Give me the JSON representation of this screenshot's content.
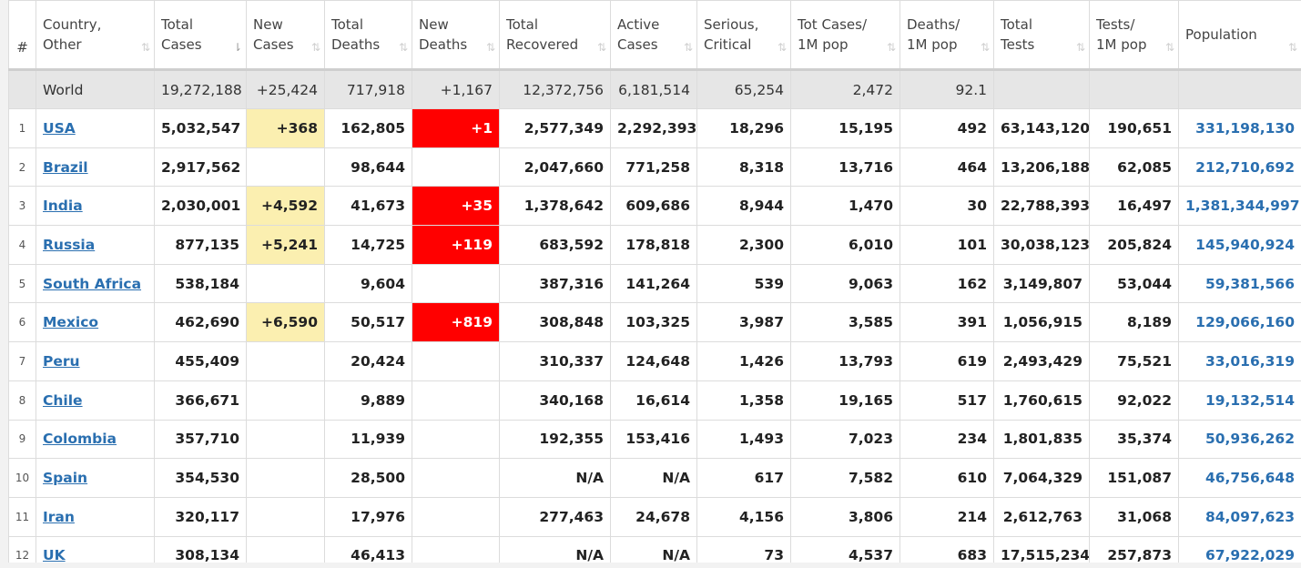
{
  "headers": [
    {
      "label_line1": "#",
      "label_line2": "",
      "sort": ""
    },
    {
      "label_line1": "Country,",
      "label_line2": "Other",
      "sort": "⇅"
    },
    {
      "label_line1": "Total",
      "label_line2": "Cases",
      "sort": "⇂"
    },
    {
      "label_line1": "New",
      "label_line2": "Cases",
      "sort": "⇅"
    },
    {
      "label_line1": "Total",
      "label_line2": "Deaths",
      "sort": "⇅"
    },
    {
      "label_line1": "New",
      "label_line2": "Deaths",
      "sort": "⇅"
    },
    {
      "label_line1": "Total",
      "label_line2": "Recovered",
      "sort": "⇅"
    },
    {
      "label_line1": "Active",
      "label_line2": "Cases",
      "sort": "⇅"
    },
    {
      "label_line1": "Serious,",
      "label_line2": "Critical",
      "sort": "⇅"
    },
    {
      "label_line1": "Tot Cases/",
      "label_line2": "1M pop",
      "sort": "⇅"
    },
    {
      "label_line1": "Deaths/",
      "label_line2": "1M pop",
      "sort": "⇅"
    },
    {
      "label_line1": "Total",
      "label_line2": "Tests",
      "sort": "⇅"
    },
    {
      "label_line1": "Tests/",
      "label_line2": "1M pop",
      "sort": "⇅"
    },
    {
      "label_line1": "Population",
      "label_line2": "",
      "sort": "⇅"
    }
  ],
  "world": {
    "rank": "",
    "country": "World",
    "total_cases": "19,272,188",
    "new_cases": "+25,424",
    "total_deaths": "717,918",
    "new_deaths": "+1,167",
    "total_recovered": "12,372,756",
    "active_cases": "6,181,514",
    "serious_critical": "65,254",
    "cases_per_1m": "2,472",
    "deaths_per_1m": "92.1",
    "total_tests": "",
    "tests_per_1m": "",
    "population": ""
  },
  "rows": [
    {
      "rank": "1",
      "country": "USA",
      "total_cases": "5,032,547",
      "new_cases": "+368",
      "total_deaths": "162,805",
      "new_deaths": "+1",
      "total_recovered": "2,577,349",
      "active_cases": "2,292,393",
      "serious_critical": "18,296",
      "cases_per_1m": "15,195",
      "deaths_per_1m": "492",
      "total_tests": "63,143,120",
      "tests_per_1m": "190,651",
      "population": "331,198,130"
    },
    {
      "rank": "2",
      "country": "Brazil",
      "total_cases": "2,917,562",
      "new_cases": "",
      "total_deaths": "98,644",
      "new_deaths": "",
      "total_recovered": "2,047,660",
      "active_cases": "771,258",
      "serious_critical": "8,318",
      "cases_per_1m": "13,716",
      "deaths_per_1m": "464",
      "total_tests": "13,206,188",
      "tests_per_1m": "62,085",
      "population": "212,710,692"
    },
    {
      "rank": "3",
      "country": "India",
      "total_cases": "2,030,001",
      "new_cases": "+4,592",
      "total_deaths": "41,673",
      "new_deaths": "+35",
      "total_recovered": "1,378,642",
      "active_cases": "609,686",
      "serious_critical": "8,944",
      "cases_per_1m": "1,470",
      "deaths_per_1m": "30",
      "total_tests": "22,788,393",
      "tests_per_1m": "16,497",
      "population": "1,381,344,997"
    },
    {
      "rank": "4",
      "country": "Russia",
      "total_cases": "877,135",
      "new_cases": "+5,241",
      "total_deaths": "14,725",
      "new_deaths": "+119",
      "total_recovered": "683,592",
      "active_cases": "178,818",
      "serious_critical": "2,300",
      "cases_per_1m": "6,010",
      "deaths_per_1m": "101",
      "total_tests": "30,038,123",
      "tests_per_1m": "205,824",
      "population": "145,940,924"
    },
    {
      "rank": "5",
      "country": "South Africa",
      "total_cases": "538,184",
      "new_cases": "",
      "total_deaths": "9,604",
      "new_deaths": "",
      "total_recovered": "387,316",
      "active_cases": "141,264",
      "serious_critical": "539",
      "cases_per_1m": "9,063",
      "deaths_per_1m": "162",
      "total_tests": "3,149,807",
      "tests_per_1m": "53,044",
      "population": "59,381,566"
    },
    {
      "rank": "6",
      "country": "Mexico",
      "total_cases": "462,690",
      "new_cases": "+6,590",
      "total_deaths": "50,517",
      "new_deaths": "+819",
      "total_recovered": "308,848",
      "active_cases": "103,325",
      "serious_critical": "3,987",
      "cases_per_1m": "3,585",
      "deaths_per_1m": "391",
      "total_tests": "1,056,915",
      "tests_per_1m": "8,189",
      "population": "129,066,160"
    },
    {
      "rank": "7",
      "country": "Peru",
      "total_cases": "455,409",
      "new_cases": "",
      "total_deaths": "20,424",
      "new_deaths": "",
      "total_recovered": "310,337",
      "active_cases": "124,648",
      "serious_critical": "1,426",
      "cases_per_1m": "13,793",
      "deaths_per_1m": "619",
      "total_tests": "2,493,429",
      "tests_per_1m": "75,521",
      "population": "33,016,319"
    },
    {
      "rank": "8",
      "country": "Chile",
      "total_cases": "366,671",
      "new_cases": "",
      "total_deaths": "9,889",
      "new_deaths": "",
      "total_recovered": "340,168",
      "active_cases": "16,614",
      "serious_critical": "1,358",
      "cases_per_1m": "19,165",
      "deaths_per_1m": "517",
      "total_tests": "1,760,615",
      "tests_per_1m": "92,022",
      "population": "19,132,514"
    },
    {
      "rank": "9",
      "country": "Colombia",
      "total_cases": "357,710",
      "new_cases": "",
      "total_deaths": "11,939",
      "new_deaths": "",
      "total_recovered": "192,355",
      "active_cases": "153,416",
      "serious_critical": "1,493",
      "cases_per_1m": "7,023",
      "deaths_per_1m": "234",
      "total_tests": "1,801,835",
      "tests_per_1m": "35,374",
      "population": "50,936,262"
    },
    {
      "rank": "10",
      "country": "Spain",
      "total_cases": "354,530",
      "new_cases": "",
      "total_deaths": "28,500",
      "new_deaths": "",
      "total_recovered": "N/A",
      "active_cases": "N/A",
      "serious_critical": "617",
      "cases_per_1m": "7,582",
      "deaths_per_1m": "610",
      "total_tests": "7,064,329",
      "tests_per_1m": "151,087",
      "population": "46,756,648"
    },
    {
      "rank": "11",
      "country": "Iran",
      "total_cases": "320,117",
      "new_cases": "",
      "total_deaths": "17,976",
      "new_deaths": "",
      "total_recovered": "277,463",
      "active_cases": "24,678",
      "serious_critical": "4,156",
      "cases_per_1m": "3,806",
      "deaths_per_1m": "214",
      "total_tests": "2,612,763",
      "tests_per_1m": "31,068",
      "population": "84,097,623"
    },
    {
      "rank": "12",
      "country": "UK",
      "total_cases": "308,134",
      "new_cases": "",
      "total_deaths": "46,413",
      "new_deaths": "",
      "total_recovered": "N/A",
      "active_cases": "N/A",
      "serious_critical": "73",
      "cases_per_1m": "4,537",
      "deaths_per_1m": "683",
      "total_tests": "17,515,234",
      "tests_per_1m": "257,873",
      "population": "67,922,029"
    }
  ],
  "colors": {
    "new_cases_highlight": "#fbefb0",
    "new_deaths_highlight": "#ff0000",
    "link": "#2a6fb0",
    "world_row": "#e6e6e6"
  },
  "icons": {
    "sort": "sort-arrows-icon",
    "sort_active": "sort-desc-icon"
  }
}
